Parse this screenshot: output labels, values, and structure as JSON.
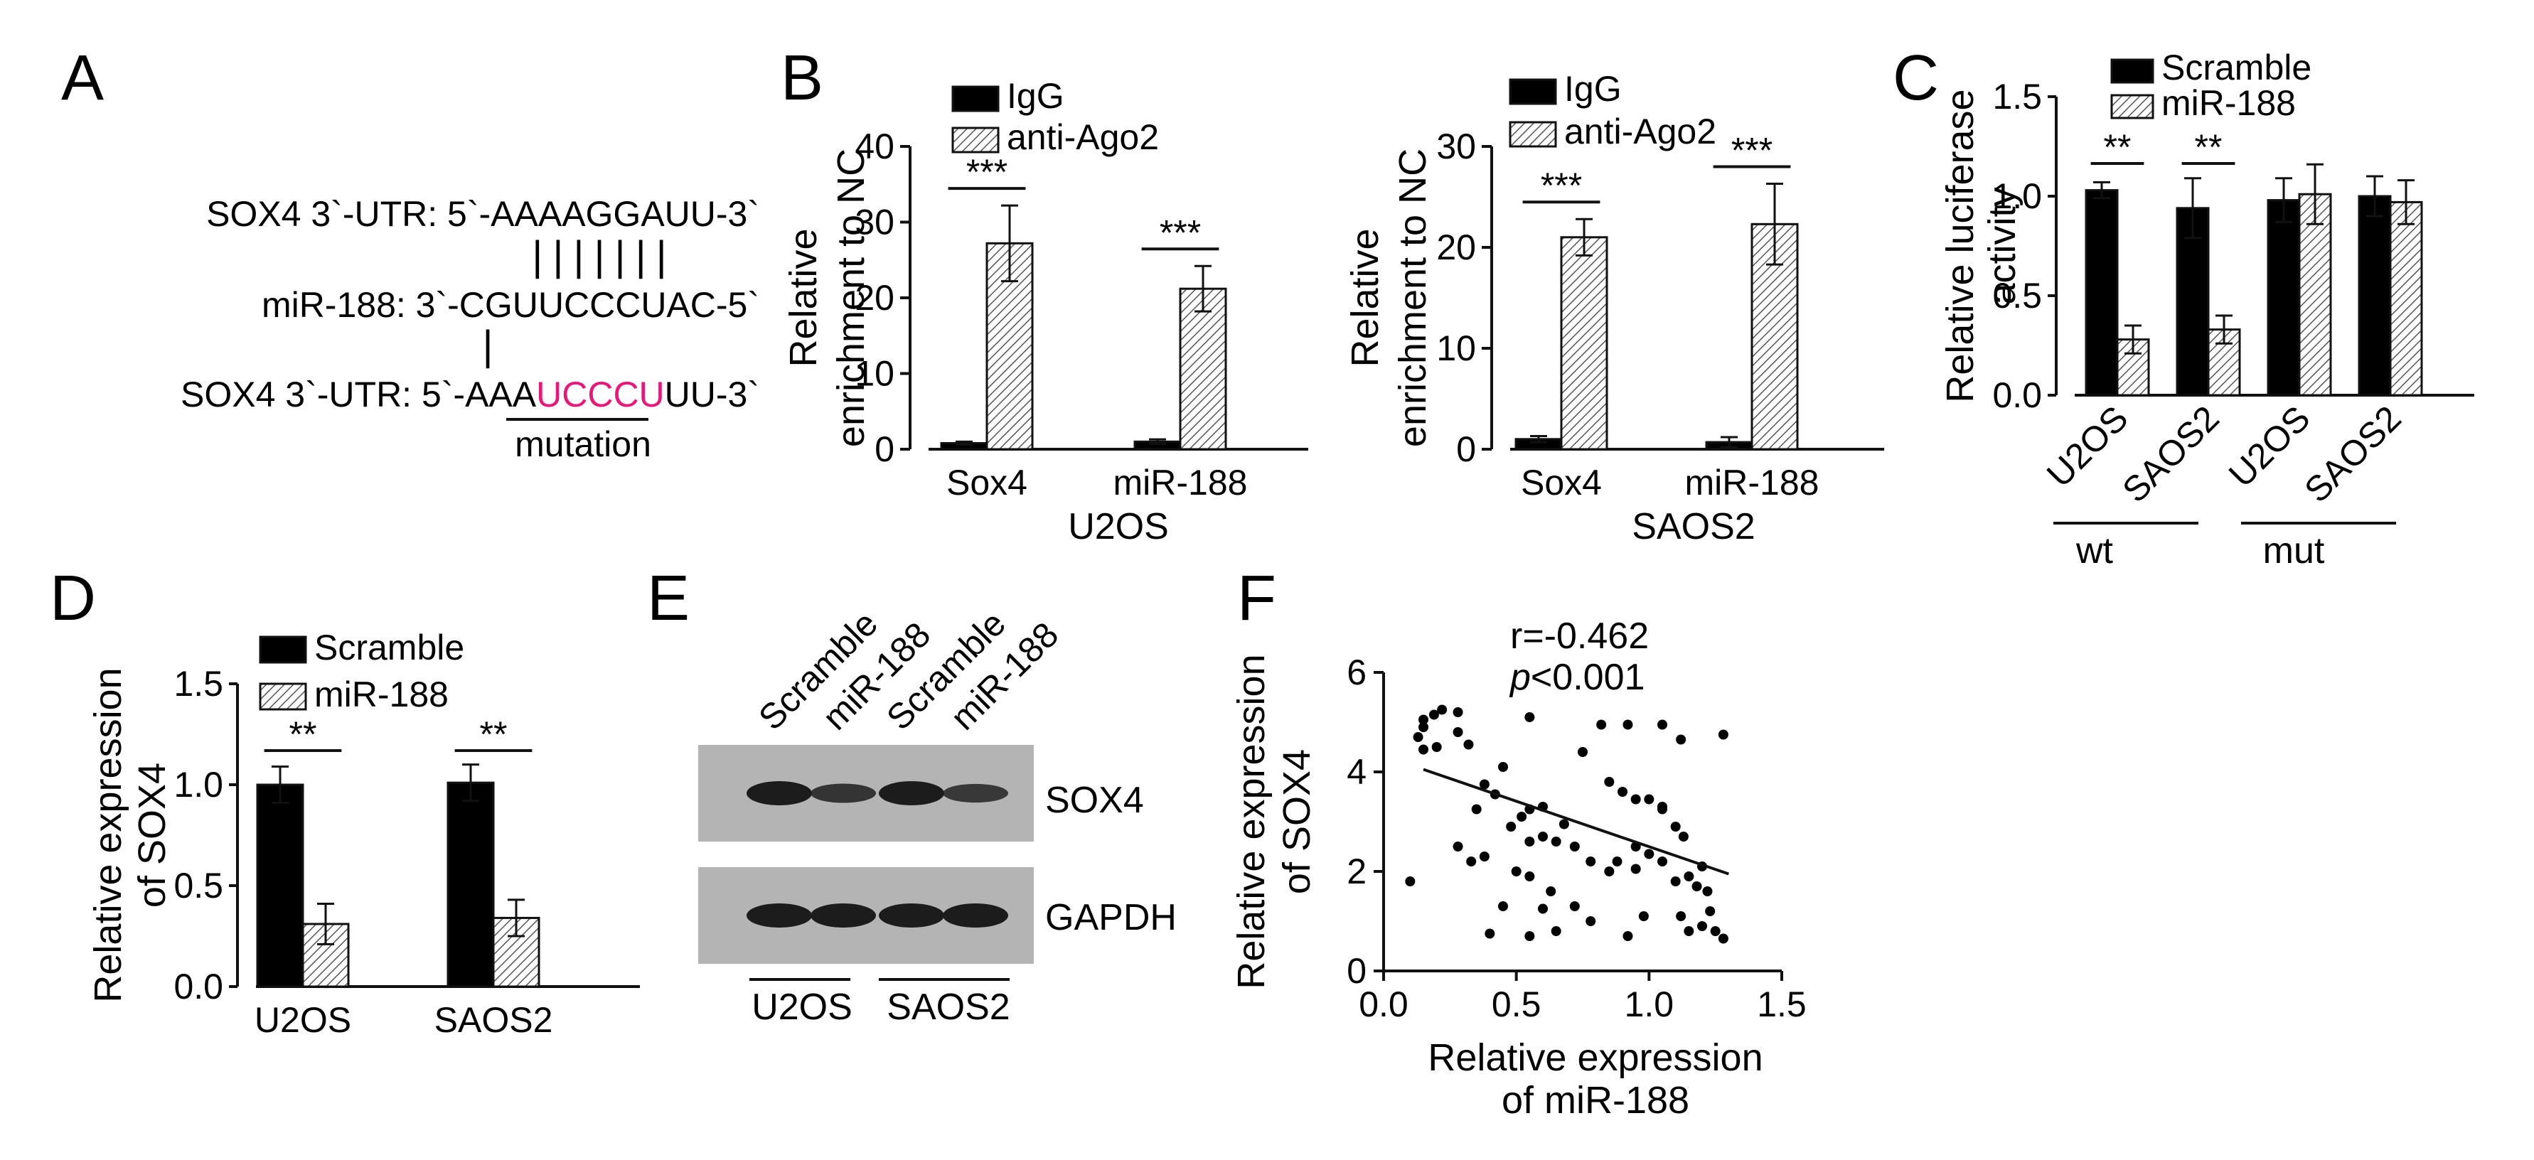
{
  "colors": {
    "ink": "#111111",
    "mutation": "#e8177a",
    "blot_bg": "#b4b4b4",
    "blot_band": "#1c1c1c"
  },
  "panels": {
    "A": {
      "letter": "A",
      "lines": [
        {
          "prefix": "SOX4 3`-UTR: 5`-",
          "seq": "AAAAGGAUU",
          "suffix": "-3`"
        },
        {
          "prefix": "miR-188: 3`-",
          "seq": "CGUUCCCUAC",
          "suffix": "-5`"
        },
        {
          "prefix": "SOX4 3`-UTR: 5`-AAA",
          "seq": "UCCCU",
          "suffix": "UU-3`"
        }
      ],
      "pairing_top": "|||||||",
      "pairing_bottom": "|",
      "mutation_label": "mutation"
    },
    "B": {
      "letter": "B"
    },
    "C": {
      "letter": "C",
      "groups": [
        "wt",
        "mut"
      ]
    },
    "D": {
      "letter": "D"
    },
    "E": {
      "letter": "E",
      "lanes": [
        "Scramble",
        "miR-188",
        "Scramble",
        "miR-188"
      ],
      "rows": [
        "SOX4",
        "GAPDH"
      ],
      "groups": [
        "U2OS",
        "SAOS2"
      ],
      "band_intensity": {
        "SOX4": [
          1.0,
          0.55,
          1.0,
          0.5
        ],
        "GAPDH": [
          1.0,
          1.0,
          1.0,
          1.0
        ]
      }
    },
    "F": {
      "letter": "F"
    }
  },
  "chart_data": [
    {
      "id": "B1",
      "type": "bar",
      "categories": [
        "Sox4",
        "miR-188"
      ],
      "group_label": "U2OS",
      "ylabel": [
        "Relative",
        "enrichment to NC"
      ],
      "ylim": [
        0,
        40
      ],
      "yticks": [
        "0",
        "10",
        "20",
        "30",
        "40"
      ],
      "series": [
        {
          "name": "IgG",
          "values": [
            0.8,
            1.0
          ],
          "errors": [
            0.2,
            0.3
          ]
        },
        {
          "name": "anti-Ago2",
          "values": [
            27.2,
            21.2
          ],
          "errors": [
            5.0,
            3.0
          ]
        }
      ],
      "significance": [
        "***",
        "***"
      ]
    },
    {
      "id": "B2",
      "type": "bar",
      "categories": [
        "Sox4",
        "miR-188"
      ],
      "group_label": "SAOS2",
      "ylabel": [
        "Relative",
        "enrichment to NC"
      ],
      "ylim": [
        0,
        30
      ],
      "yticks": [
        "0",
        "10",
        "20",
        "30"
      ],
      "series": [
        {
          "name": "IgG",
          "values": [
            1.0,
            0.7
          ],
          "errors": [
            0.3,
            0.5
          ]
        },
        {
          "name": "anti-Ago2",
          "values": [
            21.0,
            22.3
          ],
          "errors": [
            1.8,
            4.0
          ]
        }
      ],
      "significance": [
        "***",
        "***"
      ]
    },
    {
      "id": "C",
      "type": "bar",
      "categories": [
        "U2OS",
        "SAOS2",
        "U2OS",
        "SAOS2"
      ],
      "ylabel": [
        "Relative luciferase",
        "activity"
      ],
      "ylim": [
        0,
        1.5
      ],
      "yticks": [
        "0.0",
        "0.5",
        "1.0",
        "1.5"
      ],
      "series": [
        {
          "name": "Scramble",
          "values": [
            1.03,
            0.94,
            0.98,
            1.0
          ],
          "errors": [
            0.04,
            0.15,
            0.11,
            0.1
          ]
        },
        {
          "name": "miR-188",
          "values": [
            0.28,
            0.33,
            1.01,
            0.97
          ],
          "errors": [
            0.07,
            0.07,
            0.15,
            0.11
          ]
        }
      ],
      "significance": [
        "**",
        "**",
        "",
        ""
      ]
    },
    {
      "id": "D",
      "type": "bar",
      "categories": [
        "U2OS",
        "SAOS2"
      ],
      "ylabel": [
        "Relative expression",
        "of SOX4"
      ],
      "ylim": [
        0,
        1.5
      ],
      "yticks": [
        "0.0",
        "0.5",
        "1.0",
        "1.5"
      ],
      "series": [
        {
          "name": "Scramble",
          "values": [
            1.0,
            1.01
          ],
          "errors": [
            0.09,
            0.09
          ]
        },
        {
          "name": "miR-188",
          "values": [
            0.31,
            0.34
          ],
          "errors": [
            0.1,
            0.09
          ]
        }
      ],
      "significance": [
        "**",
        "**"
      ]
    },
    {
      "id": "F",
      "type": "scatter",
      "xlabel": [
        "Relative expression",
        "of miR-188"
      ],
      "ylabel": [
        "Relative expression",
        "of SOX4"
      ],
      "xlim": [
        0,
        1.5
      ],
      "ylim": [
        0,
        6
      ],
      "xticks": [
        "0.0",
        "0.5",
        "1.0",
        "1.5"
      ],
      "yticks": [
        "0",
        "2",
        "4",
        "6"
      ],
      "annotation": [
        "r=-0.462",
        "<0.001"
      ],
      "annotation_italic": "p",
      "fit": {
        "x": [
          0.15,
          1.3
        ],
        "y": [
          4.05,
          1.95
        ]
      },
      "points": [
        [
          0.15,
          5.05
        ],
        [
          0.19,
          5.15
        ],
        [
          0.22,
          5.25
        ],
        [
          0.28,
          5.2
        ],
        [
          0.15,
          4.9
        ],
        [
          0.13,
          4.7
        ],
        [
          0.15,
          4.45
        ],
        [
          0.2,
          4.5
        ],
        [
          0.28,
          4.8
        ],
        [
          0.32,
          4.55
        ],
        [
          0.55,
          5.1
        ],
        [
          0.75,
          4.4
        ],
        [
          0.82,
          4.95
        ],
        [
          0.92,
          4.95
        ],
        [
          1.05,
          4.95
        ],
        [
          1.12,
          4.65
        ],
        [
          1.28,
          4.75
        ],
        [
          0.45,
          4.1
        ],
        [
          0.38,
          3.75
        ],
        [
          0.42,
          3.55
        ],
        [
          0.55,
          3.25
        ],
        [
          0.52,
          3.1
        ],
        [
          0.6,
          3.3
        ],
        [
          0.85,
          3.8
        ],
        [
          0.9,
          3.6
        ],
        [
          0.95,
          3.45
        ],
        [
          1.0,
          3.45
        ],
        [
          1.05,
          3.3
        ],
        [
          1.1,
          2.9
        ],
        [
          1.13,
          2.7
        ],
        [
          0.35,
          3.25
        ],
        [
          0.48,
          2.9
        ],
        [
          0.6,
          2.7
        ],
        [
          0.65,
          2.6
        ],
        [
          0.72,
          2.5
        ],
        [
          0.78,
          2.2
        ],
        [
          0.85,
          2.0
        ],
        [
          0.88,
          2.2
        ],
        [
          0.95,
          2.5
        ],
        [
          1.05,
          2.2
        ],
        [
          1.15,
          1.9
        ],
        [
          1.18,
          1.7
        ],
        [
          1.22,
          1.6
        ],
        [
          0.28,
          2.5
        ],
        [
          0.33,
          2.2
        ],
        [
          0.38,
          2.3
        ],
        [
          0.5,
          2.0
        ],
        [
          0.55,
          1.9
        ],
        [
          0.63,
          1.6
        ],
        [
          0.72,
          1.3
        ],
        [
          0.78,
          1.0
        ],
        [
          0.45,
          1.3
        ],
        [
          0.55,
          0.7
        ],
        [
          0.65,
          0.8
        ],
        [
          0.92,
          0.7
        ],
        [
          0.98,
          1.1
        ],
        [
          1.12,
          1.1
        ],
        [
          1.15,
          0.8
        ],
        [
          1.2,
          0.9
        ],
        [
          1.23,
          1.2
        ],
        [
          1.25,
          0.8
        ],
        [
          1.28,
          0.65
        ],
        [
          1.1,
          1.8
        ],
        [
          1.2,
          2.1
        ],
        [
          1.05,
          3.25
        ],
        [
          0.1,
          1.8
        ],
        [
          0.95,
          2.05
        ],
        [
          1.0,
          2.35
        ],
        [
          0.68,
          2.95
        ],
        [
          0.55,
          2.6
        ],
        [
          0.6,
          1.25
        ],
        [
          0.4,
          0.75
        ]
      ]
    }
  ]
}
